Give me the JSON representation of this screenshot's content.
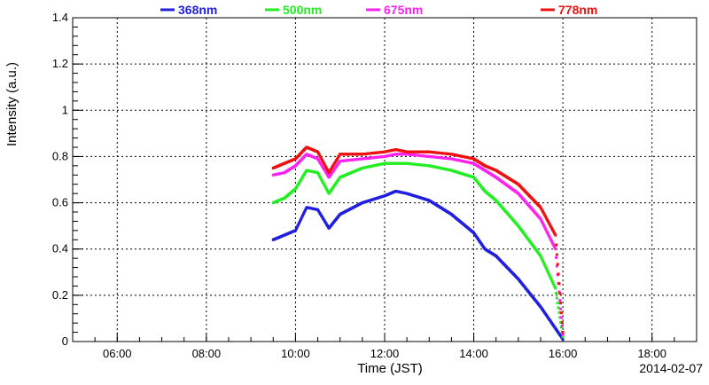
{
  "chart_data": {
    "type": "scatter",
    "xlabel": "Time (JST)",
    "ylabel": "Intensity (a.u.)",
    "date_label": "2014-02-07",
    "xlim": [
      "05:00",
      "19:00"
    ],
    "ylim": [
      0,
      1.4
    ],
    "x_ticks": [
      "06:00",
      "08:00",
      "10:00",
      "12:00",
      "14:00",
      "16:00",
      "18:00"
    ],
    "y_ticks": [
      "0",
      "0.2",
      "0.4",
      "0.6",
      "0.8",
      "1",
      "1.2",
      "1.4"
    ],
    "grid": true,
    "legend_position": "top",
    "series": [
      {
        "name": "368nm",
        "color": "#1f1fdc",
        "points": [
          [
            "09:30",
            0.44
          ],
          [
            "09:45",
            0.46
          ],
          [
            "10:00",
            0.48
          ],
          [
            "10:15",
            0.58
          ],
          [
            "10:30",
            0.57
          ],
          [
            "10:45",
            0.49
          ],
          [
            "11:00",
            0.55
          ],
          [
            "11:30",
            0.6
          ],
          [
            "12:00",
            0.63
          ],
          [
            "12:15",
            0.65
          ],
          [
            "12:30",
            0.64
          ],
          [
            "13:00",
            0.61
          ],
          [
            "13:30",
            0.55
          ],
          [
            "14:00",
            0.47
          ],
          [
            "14:15",
            0.4
          ],
          [
            "14:30",
            0.37
          ],
          [
            "15:00",
            0.27
          ],
          [
            "15:30",
            0.15
          ],
          [
            "16:00",
            0.01
          ]
        ]
      },
      {
        "name": "500nm",
        "color": "#22ee22",
        "points": [
          [
            "09:30",
            0.6
          ],
          [
            "09:45",
            0.62
          ],
          [
            "10:00",
            0.66
          ],
          [
            "10:15",
            0.74
          ],
          [
            "10:30",
            0.73
          ],
          [
            "10:45",
            0.64
          ],
          [
            "11:00",
            0.71
          ],
          [
            "11:30",
            0.75
          ],
          [
            "12:00",
            0.77
          ],
          [
            "12:15",
            0.77
          ],
          [
            "12:30",
            0.77
          ],
          [
            "13:00",
            0.76
          ],
          [
            "13:30",
            0.74
          ],
          [
            "14:00",
            0.71
          ],
          [
            "14:15",
            0.65
          ],
          [
            "14:30",
            0.61
          ],
          [
            "15:00",
            0.5
          ],
          [
            "15:30",
            0.37
          ],
          [
            "15:50",
            0.23
          ],
          [
            "16:00",
            0.02
          ]
        ]
      },
      {
        "name": "675nm",
        "color": "#ff22ee",
        "points": [
          [
            "09:30",
            0.72
          ],
          [
            "09:45",
            0.73
          ],
          [
            "10:00",
            0.76
          ],
          [
            "10:15",
            0.81
          ],
          [
            "10:30",
            0.79
          ],
          [
            "10:45",
            0.71
          ],
          [
            "11:00",
            0.78
          ],
          [
            "11:30",
            0.79
          ],
          [
            "12:00",
            0.8
          ],
          [
            "12:15",
            0.81
          ],
          [
            "12:30",
            0.81
          ],
          [
            "13:00",
            0.8
          ],
          [
            "13:30",
            0.79
          ],
          [
            "14:00",
            0.77
          ],
          [
            "14:15",
            0.74
          ],
          [
            "14:30",
            0.71
          ],
          [
            "15:00",
            0.64
          ],
          [
            "15:30",
            0.53
          ],
          [
            "15:50",
            0.4
          ],
          [
            "16:00",
            0.03
          ]
        ]
      },
      {
        "name": "778nm",
        "color": "#ee1111",
        "points": [
          [
            "09:30",
            0.75
          ],
          [
            "09:45",
            0.77
          ],
          [
            "10:00",
            0.79
          ],
          [
            "10:15",
            0.84
          ],
          [
            "10:30",
            0.82
          ],
          [
            "10:45",
            0.73
          ],
          [
            "11:00",
            0.81
          ],
          [
            "11:30",
            0.81
          ],
          [
            "12:00",
            0.82
          ],
          [
            "12:15",
            0.83
          ],
          [
            "12:30",
            0.82
          ],
          [
            "13:00",
            0.82
          ],
          [
            "13:30",
            0.81
          ],
          [
            "14:00",
            0.79
          ],
          [
            "14:15",
            0.76
          ],
          [
            "14:30",
            0.74
          ],
          [
            "15:00",
            0.68
          ],
          [
            "15:30",
            0.58
          ],
          [
            "15:50",
            0.46
          ],
          [
            "16:00",
            0.04
          ]
        ]
      }
    ]
  }
}
